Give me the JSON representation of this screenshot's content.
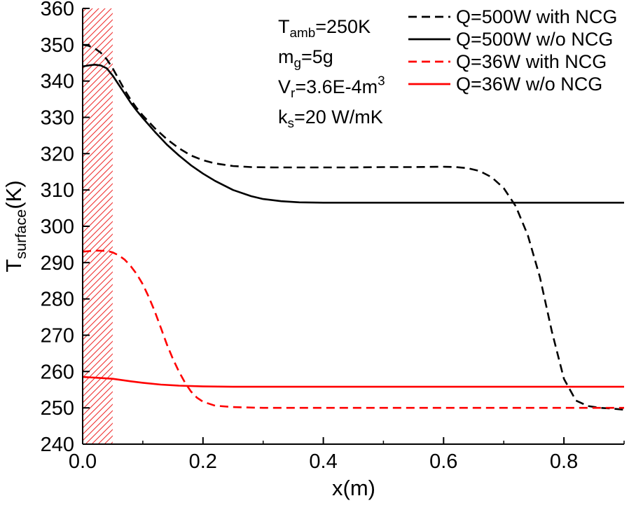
{
  "chart_data": {
    "type": "line",
    "title": "",
    "xlabel": "x(m)",
    "ylabel_segments": [
      {
        "text": "T"
      },
      {
        "text": "surface",
        "style": "sub"
      },
      {
        "text": "(K)"
      }
    ],
    "xlim": [
      0,
      0.9
    ],
    "ylim": [
      240,
      360
    ],
    "x_major_ticks": [
      {
        "v": 0.0,
        "label": "0.0"
      },
      {
        "v": 0.2,
        "label": "0.2"
      },
      {
        "v": 0.4,
        "label": "0.4"
      },
      {
        "v": 0.6,
        "label": "0.6"
      },
      {
        "v": 0.8,
        "label": "0.8"
      }
    ],
    "x_minor_ticks": [
      0.1,
      0.3,
      0.5,
      0.7,
      0.9
    ],
    "y_major_ticks": [
      240,
      250,
      260,
      270,
      280,
      290,
      300,
      310,
      320,
      330,
      340,
      350,
      360
    ],
    "grid": false,
    "legend_position": "top-right",
    "colors": {
      "black": "#000000",
      "red": "#ff0000",
      "hatch": "#f03030"
    },
    "hatch_region": {
      "x0": 0,
      "x1": 0.05
    },
    "annotations": [
      {
        "segments": [
          {
            "text": "T"
          },
          {
            "text": "amb",
            "style": "sub"
          },
          {
            "text": "=250K"
          }
        ]
      },
      {
        "segments": [
          {
            "text": "m"
          },
          {
            "text": "g",
            "style": "sub"
          },
          {
            "text": "=5g"
          }
        ]
      },
      {
        "segments": [
          {
            "text": "V"
          },
          {
            "text": "r",
            "style": "sub"
          },
          {
            "text": "=3.6E-4m"
          },
          {
            "text": "3",
            "style": "sup"
          }
        ]
      },
      {
        "segments": [
          {
            "text": "k"
          },
          {
            "text": "s",
            "style": "sub"
          },
          {
            "text": "=20 W/mK"
          }
        ]
      }
    ],
    "series": [
      {
        "name": "Q=500W with NCG",
        "color": "#000000",
        "dash": true,
        "points": [
          [
            0,
            350
          ],
          [
            0.01,
            349.7
          ],
          [
            0.02,
            349
          ],
          [
            0.03,
            347.8
          ],
          [
            0.04,
            346
          ],
          [
            0.05,
            343.5
          ],
          [
            0.06,
            340.5
          ],
          [
            0.07,
            337.5
          ],
          [
            0.08,
            334.8
          ],
          [
            0.09,
            332.5
          ],
          [
            0.1,
            330.5
          ],
          [
            0.12,
            327
          ],
          [
            0.14,
            324
          ],
          [
            0.16,
            321.5
          ],
          [
            0.18,
            319.5
          ],
          [
            0.2,
            318.2
          ],
          [
            0.22,
            317.3
          ],
          [
            0.25,
            316.6
          ],
          [
            0.28,
            316.3
          ],
          [
            0.32,
            316.2
          ],
          [
            0.36,
            316.2
          ],
          [
            0.4,
            316.2
          ],
          [
            0.45,
            316.2
          ],
          [
            0.5,
            316.3
          ],
          [
            0.55,
            316.3
          ],
          [
            0.6,
            316.4
          ],
          [
            0.62,
            316.3
          ],
          [
            0.64,
            316
          ],
          [
            0.66,
            315.2
          ],
          [
            0.68,
            313.5
          ],
          [
            0.7,
            310.5
          ],
          [
            0.72,
            305.5
          ],
          [
            0.74,
            297.5
          ],
          [
            0.76,
            286
          ],
          [
            0.78,
            271
          ],
          [
            0.8,
            258
          ],
          [
            0.82,
            252
          ],
          [
            0.84,
            250.5
          ],
          [
            0.86,
            250
          ],
          [
            0.88,
            249.8
          ],
          [
            0.9,
            249.5
          ]
        ]
      },
      {
        "name": "Q=500W w/o NCG",
        "color": "#000000",
        "dash": false,
        "points": [
          [
            0,
            344
          ],
          [
            0.01,
            344.3
          ],
          [
            0.02,
            344.5
          ],
          [
            0.03,
            344.3
          ],
          [
            0.04,
            343.5
          ],
          [
            0.05,
            341.5
          ],
          [
            0.06,
            339
          ],
          [
            0.07,
            336.5
          ],
          [
            0.08,
            334
          ],
          [
            0.09,
            331.8
          ],
          [
            0.1,
            329.8
          ],
          [
            0.12,
            326
          ],
          [
            0.14,
            322.5
          ],
          [
            0.16,
            319.5
          ],
          [
            0.18,
            316.8
          ],
          [
            0.2,
            314.5
          ],
          [
            0.22,
            312.5
          ],
          [
            0.25,
            310
          ],
          [
            0.28,
            308.3
          ],
          [
            0.3,
            307.5
          ],
          [
            0.33,
            306.9
          ],
          [
            0.36,
            306.6
          ],
          [
            0.4,
            306.5
          ],
          [
            0.5,
            306.5
          ],
          [
            0.6,
            306.5
          ],
          [
            0.7,
            306.5
          ],
          [
            0.8,
            306.5
          ],
          [
            0.9,
            306.5
          ]
        ]
      },
      {
        "name": "Q=36W with NCG",
        "color": "#ff0000",
        "dash": true,
        "points": [
          [
            0,
            293
          ],
          [
            0.02,
            293.3
          ],
          [
            0.04,
            293.2
          ],
          [
            0.05,
            292.8
          ],
          [
            0.06,
            292
          ],
          [
            0.07,
            290.8
          ],
          [
            0.08,
            289
          ],
          [
            0.09,
            286.8
          ],
          [
            0.1,
            284
          ],
          [
            0.11,
            280.5
          ],
          [
            0.12,
            276.5
          ],
          [
            0.13,
            272
          ],
          [
            0.14,
            267.5
          ],
          [
            0.15,
            263.5
          ],
          [
            0.16,
            260
          ],
          [
            0.17,
            257
          ],
          [
            0.18,
            254.5
          ],
          [
            0.19,
            252.8
          ],
          [
            0.2,
            251.7
          ],
          [
            0.22,
            250.6
          ],
          [
            0.25,
            250.2
          ],
          [
            0.3,
            250
          ],
          [
            0.4,
            250
          ],
          [
            0.5,
            250
          ],
          [
            0.6,
            250
          ],
          [
            0.7,
            250
          ],
          [
            0.8,
            250
          ],
          [
            0.9,
            250
          ]
        ]
      },
      {
        "name": "Q=36W w/o NCG",
        "color": "#ff0000",
        "dash": false,
        "points": [
          [
            0,
            258.5
          ],
          [
            0.02,
            258.3
          ],
          [
            0.05,
            258
          ],
          [
            0.08,
            257.3
          ],
          [
            0.1,
            256.9
          ],
          [
            0.13,
            256.4
          ],
          [
            0.16,
            256.1
          ],
          [
            0.2,
            255.9
          ],
          [
            0.25,
            255.8
          ],
          [
            0.3,
            255.8
          ],
          [
            0.4,
            255.8
          ],
          [
            0.5,
            255.8
          ],
          [
            0.6,
            255.8
          ],
          [
            0.7,
            255.8
          ],
          [
            0.8,
            255.8
          ],
          [
            0.9,
            255.8
          ]
        ]
      }
    ]
  }
}
